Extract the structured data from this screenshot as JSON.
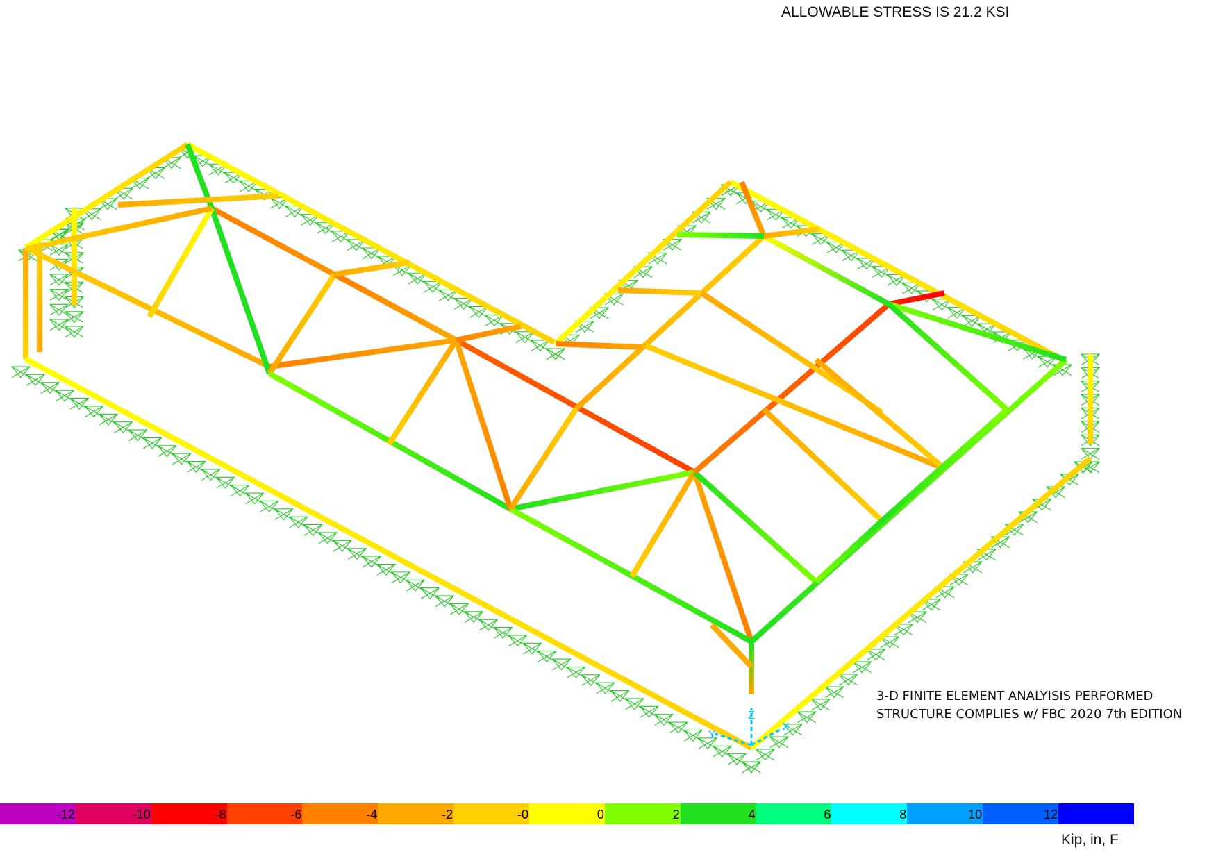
{
  "header": {
    "title": "ALLOWABLE STRESS IS 21.2 KSI"
  },
  "note": {
    "line1": "3-D FINITE ELEMENT ANALYISIS PERFORMED",
    "line2": "STRUCTURE COMPLIES w/ FBC 2020 7th EDITION"
  },
  "legend": {
    "units": "Kip, in, F",
    "segments": [
      {
        "color": "#c000c0",
        "label": "-12.0"
      },
      {
        "color": "#e00060",
        "label": "-10.2"
      },
      {
        "color": "#ff0000",
        "label": "-8.3"
      },
      {
        "color": "#ff4000",
        "label": "-6.5"
      },
      {
        "color": "#ff8000",
        "label": "-4.6"
      },
      {
        "color": "#ffa800",
        "label": "-2.8"
      },
      {
        "color": "#ffd000",
        "label": "-0.9"
      },
      {
        "color": "#ffff00",
        "label": "0.9"
      },
      {
        "color": "#80ff00",
        "label": "2.8"
      },
      {
        "color": "#20e020",
        "label": "4.6"
      },
      {
        "color": "#00ff80",
        "label": "6.5"
      },
      {
        "color": "#00ffff",
        "label": "8.3"
      },
      {
        "color": "#00a0ff",
        "label": "10.2"
      },
      {
        "color": "#0060ff",
        "label": "12.0"
      },
      {
        "color": "#0000ff",
        "label": ""
      }
    ]
  },
  "axis": {
    "z": "Z",
    "y": "Y",
    "x": "X"
  },
  "structure": {
    "members": [
      {
        "from": [
          270,
          208
        ],
        "to": [
          798,
          493
        ],
        "colors": [
          "#ffff00",
          "#ffd000"
        ]
      },
      {
        "from": [
          1052,
          262
        ],
        "to": [
          1530,
          518
        ],
        "colors": [
          "#ffff00",
          "#ffd000"
        ]
      },
      {
        "from": [
          800,
          495
        ],
        "to": [
          1052,
          262
        ],
        "colors": [
          "#ffff00",
          "#ffd000"
        ]
      },
      {
        "from": [
          37,
          357
        ],
        "to": [
          270,
          208
        ],
        "colors": [
          "#ffff00",
          "#ffd000"
        ]
      },
      {
        "from": [
          37,
          357
        ],
        "to": [
          37,
          517
        ],
        "colors": [
          "#ffa800",
          "#ffd000"
        ]
      },
      {
        "from": [
          57,
          357
        ],
        "to": [
          57,
          507
        ],
        "colors": [
          "#ffd000",
          "#ffa800"
        ]
      },
      {
        "from": [
          107,
          300
        ],
        "to": [
          107,
          440
        ],
        "colors": [
          "#ffff00",
          "#ffd000"
        ]
      },
      {
        "from": [
          37,
          517
        ],
        "to": [
          1082,
          1077
        ],
        "colors": [
          "#ffff00",
          "#ffd000"
        ]
      },
      {
        "from": [
          1082,
          1077
        ],
        "to": [
          1570,
          660
        ],
        "colors": [
          "#ffff00",
          "#ffd000"
        ]
      },
      {
        "from": [
          1570,
          510
        ],
        "to": [
          1570,
          640
        ],
        "colors": [
          "#ffff00",
          "#ffd000"
        ]
      },
      {
        "from": [
          37,
          357
        ],
        "to": [
          388,
          528
        ],
        "colors": [
          "#ffd000",
          "#ffa800"
        ]
      },
      {
        "from": [
          388,
          528
        ],
        "to": [
          657,
          490
        ],
        "colors": [
          "#ff8000",
          "#ffa800"
        ]
      },
      {
        "from": [
          657,
          490
        ],
        "to": [
          1000,
          680
        ],
        "colors": [
          "#ff6000",
          "#ff4000"
        ]
      },
      {
        "from": [
          1000,
          680
        ],
        "to": [
          1082,
          924
        ],
        "colors": [
          "#ffa800",
          "#ff8000"
        ]
      },
      {
        "from": [
          305,
          300
        ],
        "to": [
          657,
          490
        ],
        "colors": [
          "#ff8000",
          "#ffa800"
        ]
      },
      {
        "from": [
          270,
          208
        ],
        "to": [
          305,
          300
        ],
        "colors": [
          "#20e020",
          "#20e020"
        ]
      },
      {
        "from": [
          305,
          300
        ],
        "to": [
          388,
          538
        ],
        "colors": [
          "#20e020",
          "#20e020"
        ]
      },
      {
        "from": [
          305,
          300
        ],
        "to": [
          215,
          456
        ],
        "colors": [
          "#ffff00",
          "#ffd000"
        ]
      },
      {
        "from": [
          40,
          358
        ],
        "to": [
          305,
          300
        ],
        "colors": [
          "#ffd000",
          "#ffa800"
        ]
      },
      {
        "from": [
          170,
          295
        ],
        "to": [
          400,
          282
        ],
        "colors": [
          "#ffa800",
          "#ffd000"
        ]
      },
      {
        "from": [
          388,
          538
        ],
        "to": [
          482,
          395
        ],
        "colors": [
          "#ffa800",
          "#ffd000"
        ]
      },
      {
        "from": [
          482,
          395
        ],
        "to": [
          657,
          490
        ],
        "colors": [
          "#ff8000",
          "#ffa800"
        ]
      },
      {
        "from": [
          482,
          395
        ],
        "to": [
          590,
          378
        ],
        "colors": [
          "#ffa800",
          "#ffd000"
        ]
      },
      {
        "from": [
          388,
          538
        ],
        "to": [
          735,
          733
        ],
        "colors": [
          "#80ff00",
          "#20e020"
        ]
      },
      {
        "from": [
          735,
          733
        ],
        "to": [
          1000,
          680
        ],
        "colors": [
          "#20e020",
          "#80ff00"
        ]
      },
      {
        "from": [
          657,
          490
        ],
        "to": [
          735,
          733
        ],
        "colors": [
          "#ffa800",
          "#ff8000"
        ]
      },
      {
        "from": [
          657,
          490
        ],
        "to": [
          560,
          640
        ],
        "colors": [
          "#ffa800",
          "#ffd000"
        ]
      },
      {
        "from": [
          657,
          490
        ],
        "to": [
          750,
          470
        ],
        "colors": [
          "#ff8000",
          "#ffa800"
        ]
      },
      {
        "from": [
          735,
          733
        ],
        "to": [
          1082,
          924
        ],
        "colors": [
          "#80ff00",
          "#20e020"
        ]
      },
      {
        "from": [
          735,
          733
        ],
        "to": [
          830,
          588
        ],
        "colors": [
          "#ffa800",
          "#ffd000"
        ]
      },
      {
        "from": [
          830,
          588
        ],
        "to": [
          1100,
          340
        ],
        "colors": [
          "#ffa800",
          "#ffd000"
        ]
      },
      {
        "from": [
          1000,
          680
        ],
        "to": [
          910,
          830
        ],
        "colors": [
          "#ffa800",
          "#ffd000"
        ]
      },
      {
        "from": [
          1000,
          680
        ],
        "to": [
          1175,
          838
        ],
        "colors": [
          "#20e020",
          "#80ff00"
        ]
      },
      {
        "from": [
          1082,
          924
        ],
        "to": [
          1535,
          518
        ],
        "colors": [
          "#20e020",
          "#80ff00"
        ]
      },
      {
        "from": [
          1000,
          680
        ],
        "to": [
          1280,
          438
        ],
        "colors": [
          "#ff8000",
          "#ff4000"
        ]
      },
      {
        "from": [
          1280,
          438
        ],
        "to": [
          1360,
          422
        ],
        "colors": [
          "#ff2000",
          "#ff0000"
        ]
      },
      {
        "from": [
          1280,
          438
        ],
        "to": [
          1535,
          518
        ],
        "colors": [
          "#80ff00",
          "#20e020"
        ]
      },
      {
        "from": [
          1280,
          438
        ],
        "to": [
          1450,
          590
        ],
        "colors": [
          "#20e020",
          "#80ff00"
        ]
      },
      {
        "from": [
          1100,
          340
        ],
        "to": [
          1280,
          438
        ],
        "colors": [
          "#ffff00",
          "#20e020"
        ]
      },
      {
        "from": [
          1100,
          340
        ],
        "to": [
          1068,
          262
        ],
        "colors": [
          "#ffa800",
          "#ff8000"
        ]
      },
      {
        "from": [
          1100,
          340
        ],
        "to": [
          1180,
          330
        ],
        "colors": [
          "#ffa800",
          "#ffd000"
        ]
      },
      {
        "from": [
          1100,
          340
        ],
        "to": [
          975,
          338
        ],
        "colors": [
          "#20e020",
          "#80ff00"
        ]
      },
      {
        "from": [
          890,
          418
        ],
        "to": [
          1010,
          422
        ],
        "colors": [
          "#ffa800",
          "#ffd000"
        ]
      },
      {
        "from": [
          800,
          495
        ],
        "to": [
          925,
          500
        ],
        "colors": [
          "#ff8000",
          "#ffa800"
        ]
      },
      {
        "from": [
          930,
          498
        ],
        "to": [
          1360,
          675
        ],
        "colors": [
          "#ffd000",
          "#ffa800"
        ]
      },
      {
        "from": [
          1010,
          422
        ],
        "to": [
          1270,
          594
        ],
        "colors": [
          "#ffa800",
          "#ffd000"
        ]
      },
      {
        "from": [
          1100,
          590
        ],
        "to": [
          1270,
          750
        ],
        "colors": [
          "#ffa800",
          "#ffd000"
        ]
      },
      {
        "from": [
          1175,
          518
        ],
        "to": [
          1360,
          675
        ],
        "colors": [
          "#ffa800",
          "#ffd000"
        ]
      },
      {
        "from": [
          1082,
          924
        ],
        "to": [
          1082,
          1000
        ],
        "colors": [
          "#20e020",
          "#ffa800"
        ]
      },
      {
        "from": [
          1025,
          900
        ],
        "to": [
          1082,
          960
        ],
        "colors": [
          "#ffa800",
          "#ffa800"
        ]
      },
      {
        "from": [
          1270,
          750
        ],
        "to": [
          1450,
          590
        ],
        "colors": [
          "#20e020",
          "#80ff00"
        ]
      },
      {
        "from": [
          1175,
          838
        ],
        "to": [
          1270,
          750
        ],
        "colors": [
          "#80ff00",
          "#20e020"
        ]
      }
    ],
    "supports": [
      {
        "from": [
          30,
          528
        ],
        "to": [
          1082,
          1097
        ],
        "count": 50
      },
      {
        "from": [
          1082,
          1097
        ],
        "to": [
          1560,
          665
        ],
        "count": 24
      },
      {
        "from": [
          270,
          212
        ],
        "to": [
          800,
          502
        ],
        "count": 24
      },
      {
        "from": [
          800,
          502
        ],
        "to": [
          1052,
          266
        ],
        "count": 12
      },
      {
        "from": [
          1052,
          266
        ],
        "to": [
          1530,
          525
        ],
        "count": 22
      },
      {
        "from": [
          40,
          360
        ],
        "to": [
          270,
          212
        ],
        "count": 10
      },
      {
        "from": [
          1570,
          510
        ],
        "to": [
          1570,
          665
        ],
        "count": 8
      },
      {
        "from": [
          107,
          300
        ],
        "to": [
          107,
          470
        ],
        "count": 8
      },
      {
        "from": [
          85,
          330
        ],
        "to": [
          85,
          460
        ],
        "count": 6
      }
    ]
  }
}
